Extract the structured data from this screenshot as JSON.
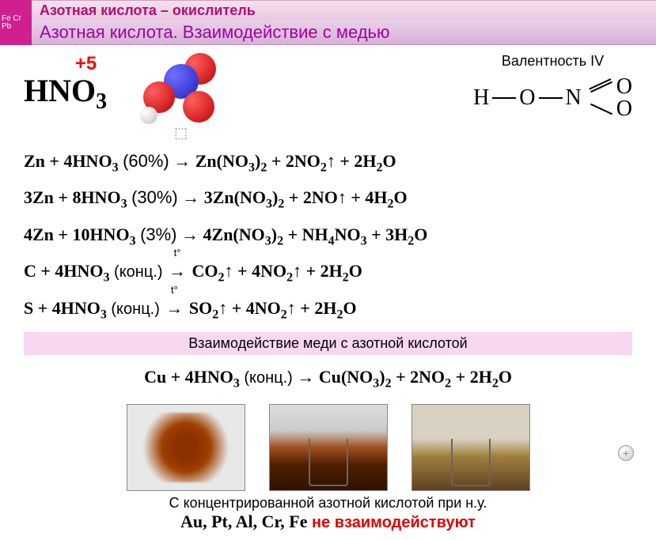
{
  "header": {
    "icon_text": "Fe Cr Pb",
    "line1": "Азотная кислота – окислитель",
    "line2": "Азотная кислота. Взаимодействие с медью"
  },
  "formula": {
    "oxidation_state": "+5",
    "formula_html": "HNO<sub>3</sub>"
  },
  "valence": {
    "label": "Валентность IV",
    "struct_left": "H",
    "struct_mid": "O",
    "struct_n": "N",
    "struct_o": "O"
  },
  "equations": [
    "Zn + 4HNO<sub>3</sub> <span class='pct'>(60%)</span> → Zn(NO<sub>3</sub>)<sub>2</sub> + 2NO<sub>2</sub>↑ + 2H<sub>2</sub>O",
    "3Zn + 8HNO<sub>3</sub> <span class='pct'>(30%)</span> → 3Zn(NO<sub>3</sub>)<sub>2</sub> + 2NO↑ + 4H<sub>2</sub>O",
    "4Zn + 10HNO<sub>3</sub> <span class='pct'>(3%)</span> → 4Zn(NO<sub>3</sub>)<sub>2</sub> + NH<sub>4</sub>NO<sub>3</sub> + 3H<sub>2</sub>O",
    "C + 4HNO<sub>3</sub> <span class='label'>(конц.)</span> <span class='arrow-t'>→</span> CO<sub>2</sub>↑ + 4NO<sub>2</sub>↑ + 2H<sub>2</sub>O",
    "S + 4HNO<sub>3</sub> <span class='label'>(конц.)</span> <span class='arrow-t'>→</span> SO<sub>2</sub>↑ + 4NO<sub>2</sub>↑ + 2H<sub>2</sub>O"
  ],
  "pink_band": "Взаимодействие меди с азотной кислотой",
  "cu_equation": "Cu + 4HNO<sub>3</sub> <span class='label'>(конц.)</span> → Cu(NO<sub>3</sub>)<sub>2</sub> + 2NO<sub>2</sub> + 2H<sub>2</sub>O",
  "footer": {
    "line1": "С концентрированной азотной кислотой при н.у.",
    "metals": "Au, Pt, Al, Cr, Fe",
    "no_react": "не взаимодействуют"
  },
  "colors": {
    "header_accent": "#b01070",
    "header_sub": "#a000a0",
    "pink_band": "#f8d8f0",
    "ox_state": "#ff0000",
    "red_text": "#e00000"
  }
}
